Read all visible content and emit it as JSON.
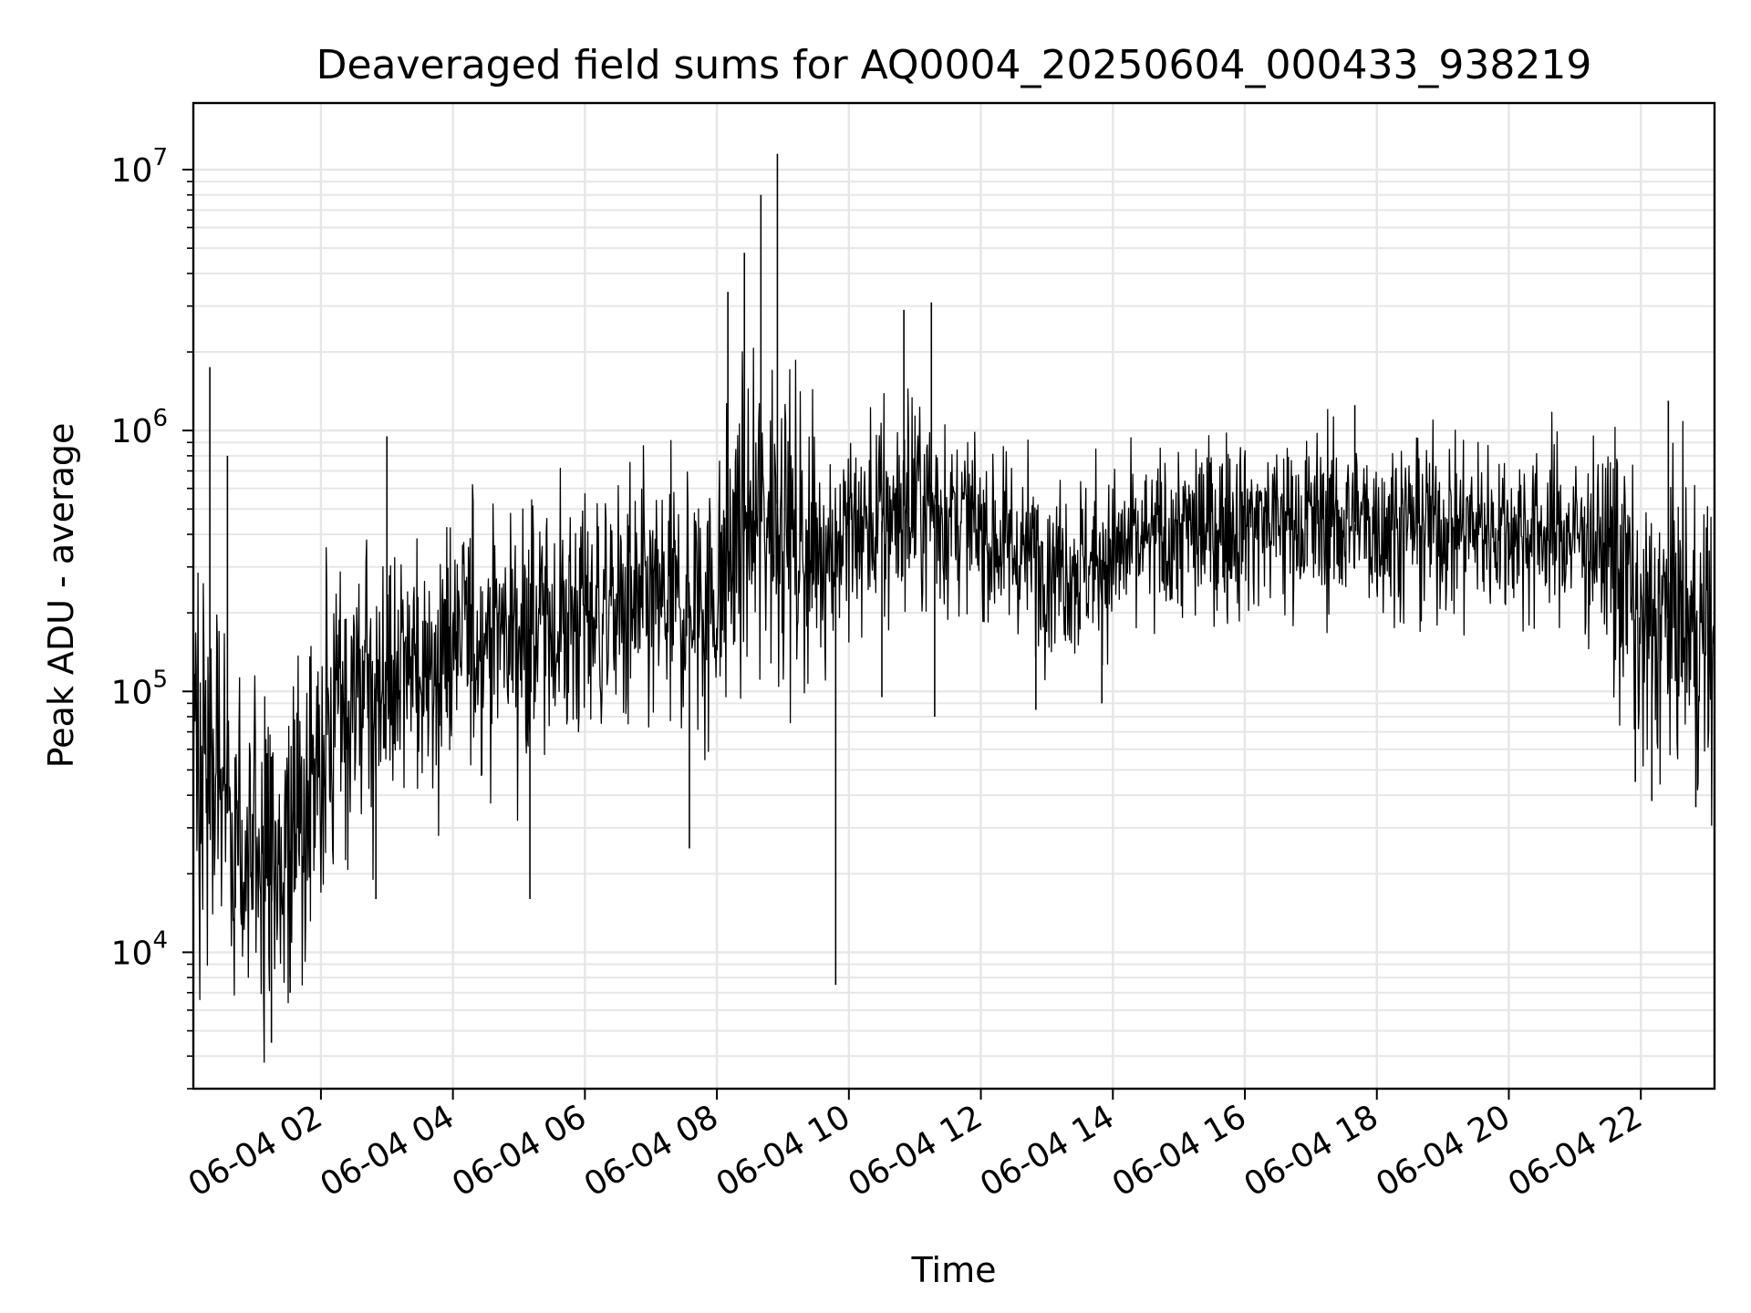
{
  "chart_data": {
    "type": "line",
    "title": "Deaveraged field sums for AQ0004_20250604_000433_938219",
    "xlabel": "Time",
    "ylabel": "Peak ADU - average",
    "yscale": "log",
    "ylim": [
      3000,
      18000000
    ],
    "xlim": [
      "2025-06-04 00:04",
      "2025-06-04 23:07"
    ],
    "grid": true,
    "legend": "none",
    "line_color": "#000000",
    "x_ticks": [
      {
        "x": "2025-06-04 02:00",
        "label": "06-04 02"
      },
      {
        "x": "2025-06-04 04:00",
        "label": "06-04 04"
      },
      {
        "x": "2025-06-04 06:00",
        "label": "06-04 06"
      },
      {
        "x": "2025-06-04 08:00",
        "label": "06-04 08"
      },
      {
        "x": "2025-06-04 10:00",
        "label": "06-04 10"
      },
      {
        "x": "2025-06-04 12:00",
        "label": "06-04 12"
      },
      {
        "x": "2025-06-04 14:00",
        "label": "06-04 14"
      },
      {
        "x": "2025-06-04 16:00",
        "label": "06-04 16"
      },
      {
        "x": "2025-06-04 18:00",
        "label": "06-04 18"
      },
      {
        "x": "2025-06-04 20:00",
        "label": "06-04 20"
      },
      {
        "x": "2025-06-04 22:00",
        "label": "06-04 22"
      }
    ],
    "y_ticks": [
      {
        "value": 10000,
        "base": "10",
        "exp": "4"
      },
      {
        "value": 100000,
        "base": "10",
        "exp": "5"
      },
      {
        "value": 1000000,
        "base": "10",
        "exp": "6"
      },
      {
        "value": 10000000,
        "base": "10",
        "exp": "7"
      }
    ],
    "series": [
      {
        "x": [
          "2025-06-04 00:04",
          "2025-06-04 00:20",
          "2025-06-04 00:40",
          "2025-06-04 01:00",
          "2025-06-04 01:20",
          "2025-06-04 01:40",
          "2025-06-04 02:00",
          "2025-06-04 02:30",
          "2025-06-04 03:00",
          "2025-06-04 03:30",
          "2025-06-04 04:00",
          "2025-06-04 04:30",
          "2025-06-04 05:00",
          "2025-06-04 05:30",
          "2025-06-04 06:00",
          "2025-06-04 06:30",
          "2025-06-04 07:00",
          "2025-06-04 07:30",
          "2025-06-04 08:00",
          "2025-06-04 08:20",
          "2025-06-04 08:40",
          "2025-06-04 09:00",
          "2025-06-04 09:10",
          "2025-06-04 09:30",
          "2025-06-04 10:00",
          "2025-06-04 10:30",
          "2025-06-04 11:00",
          "2025-06-04 11:30",
          "2025-06-04 12:00",
          "2025-06-04 12:30",
          "2025-06-04 13:00",
          "2025-06-04 13:30",
          "2025-06-04 14:00",
          "2025-06-04 15:00",
          "2025-06-04 16:00",
          "2025-06-04 17:00",
          "2025-06-04 18:00",
          "2025-06-04 19:00",
          "2025-06-04 20:00",
          "2025-06-04 21:00",
          "2025-06-04 21:30",
          "2025-06-04 21:45",
          "2025-06-04 22:00",
          "2025-06-04 22:30",
          "2025-06-04 23:07"
        ],
        "y": [
          60000,
          50000,
          30000,
          20000,
          18000,
          30000,
          55000,
          90000,
          110000,
          120000,
          150000,
          170000,
          170000,
          180000,
          200000,
          200000,
          210000,
          210000,
          230000,
          400000,
          450000,
          550000,
          350000,
          350000,
          400000,
          450000,
          550000,
          500000,
          400000,
          350000,
          320000,
          300000,
          330000,
          400000,
          450000,
          450000,
          440000,
          430000,
          420000,
          400000,
          350000,
          300000,
          150000,
          200000,
          150000
        ]
      }
    ],
    "spikes": [
      {
        "x": "2025-06-04 00:19",
        "y": 1750000
      },
      {
        "x": "2025-06-04 00:35",
        "y": 800000
      },
      {
        "x": "2025-06-04 01:15",
        "y": 4500
      },
      {
        "x": "2025-06-04 01:32",
        "y": 7000
      },
      {
        "x": "2025-06-04 02:50",
        "y": 16000
      },
      {
        "x": "2025-06-04 03:00",
        "y": 950000
      },
      {
        "x": "2025-06-04 05:10",
        "y": 16000
      },
      {
        "x": "2025-06-04 07:35",
        "y": 25000
      },
      {
        "x": "2025-06-04 08:10",
        "y": 3400000
      },
      {
        "x": "2025-06-04 08:25",
        "y": 4800000
      },
      {
        "x": "2025-06-04 08:40",
        "y": 8000000
      },
      {
        "x": "2025-06-04 08:55",
        "y": 11500000
      },
      {
        "x": "2025-06-04 09:48",
        "y": 7500
      },
      {
        "x": "2025-06-04 10:30",
        "y": 95000
      },
      {
        "x": "2025-06-04 10:50",
        "y": 2900000
      },
      {
        "x": "2025-06-04 11:15",
        "y": 3100000
      },
      {
        "x": "2025-06-04 11:18",
        "y": 80000
      },
      {
        "x": "2025-06-04 12:50",
        "y": 85000
      },
      {
        "x": "2025-06-04 13:50",
        "y": 90000
      },
      {
        "x": "2025-06-04 17:40",
        "y": 1250000
      },
      {
        "x": "2025-06-04 21:55",
        "y": 45000
      },
      {
        "x": "2025-06-04 22:10",
        "y": 38000
      },
      {
        "x": "2025-06-04 22:25",
        "y": 1300000
      },
      {
        "x": "2025-06-04 22:50",
        "y": 36000
      }
    ]
  }
}
